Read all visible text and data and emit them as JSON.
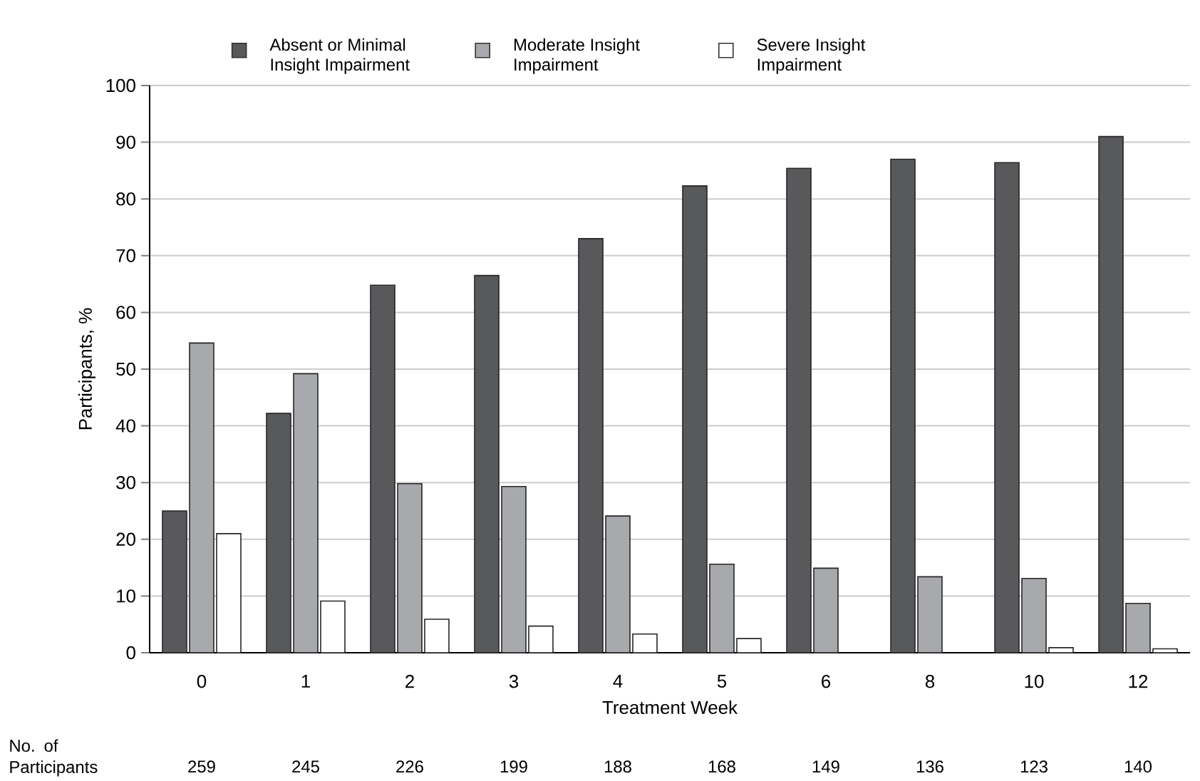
{
  "chart_data": {
    "type": "bar",
    "xlabel": "Treatment Week",
    "ylabel": "Participants, %",
    "categories": [
      "0",
      "1",
      "2",
      "3",
      "4",
      "5",
      "6",
      "8",
      "10",
      "12"
    ],
    "series": [
      {
        "name": "Absent or Minimal Insight Impairment",
        "color": "#58595b",
        "values": [
          25,
          42.2,
          64.8,
          66.5,
          73,
          82.3,
          85.4,
          87,
          86.4,
          91
        ]
      },
      {
        "name": "Moderate Insight Impairment",
        "color": "#a7a9ac",
        "values": [
          54.6,
          49.2,
          29.8,
          29.3,
          24.1,
          15.6,
          14.9,
          13.4,
          13.1,
          8.7
        ]
      },
      {
        "name": "Severe Insight Impairment",
        "color": "#ffffff",
        "values": [
          21,
          9.1,
          5.9,
          4.7,
          3.3,
          2.5,
          null,
          null,
          0.9,
          0.7
        ]
      }
    ],
    "ylim": [
      0,
      100
    ],
    "yticks": [
      0,
      10,
      20,
      30,
      40,
      50,
      60,
      70,
      80,
      90,
      100
    ],
    "grid": "y",
    "legend": "top",
    "annotations": [
      "No. of Participants",
      "259",
      "245",
      "226",
      "199",
      "188",
      "168",
      "149",
      "136",
      "123",
      "140"
    ]
  }
}
